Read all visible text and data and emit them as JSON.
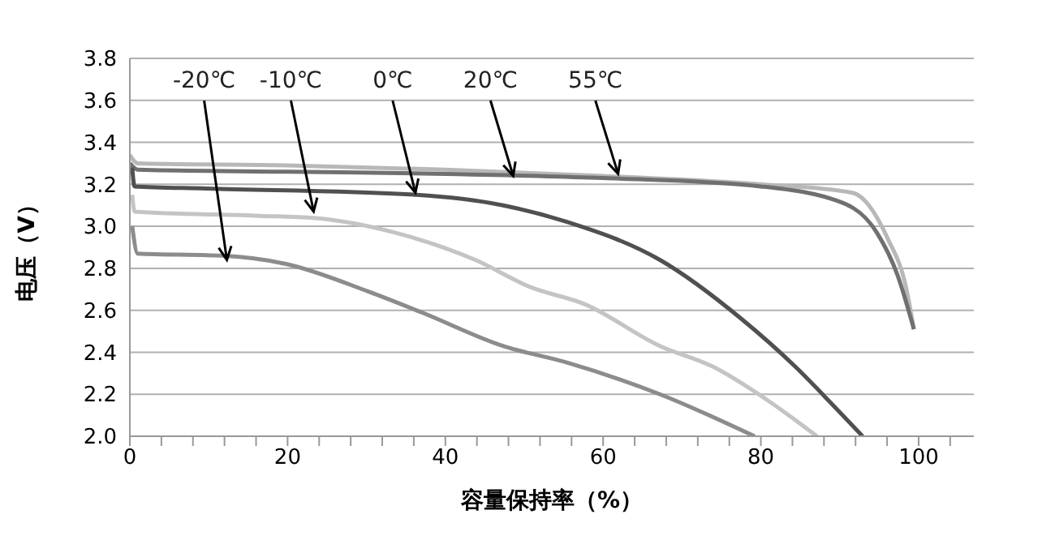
{
  "chart_data": {
    "type": "line",
    "xlabel": "容量保持率（%）",
    "ylabel": "电压（V）",
    "xlim": [
      0,
      107
    ],
    "ylim": [
      2.0,
      3.8
    ],
    "xticks": [
      {
        "value": 0,
        "label": "0"
      },
      {
        "value": 4,
        "label": null
      },
      {
        "value": 8,
        "label": null
      },
      {
        "value": 12,
        "label": null
      },
      {
        "value": 16,
        "label": null
      },
      {
        "value": 20,
        "label": "20"
      },
      {
        "value": 24,
        "label": null
      },
      {
        "value": 28,
        "label": null
      },
      {
        "value": 32,
        "label": null
      },
      {
        "value": 36,
        "label": null
      },
      {
        "value": 40,
        "label": "40"
      },
      {
        "value": 44,
        "label": null
      },
      {
        "value": 48,
        "label": null
      },
      {
        "value": 52,
        "label": null
      },
      {
        "value": 56,
        "label": null
      },
      {
        "value": 60,
        "label": "60"
      },
      {
        "value": 64,
        "label": null
      },
      {
        "value": 68,
        "label": null
      },
      {
        "value": 72,
        "label": null
      },
      {
        "value": 76,
        "label": null
      },
      {
        "value": 80,
        "label": "80"
      },
      {
        "value": 84,
        "label": null
      },
      {
        "value": 88,
        "label": null
      },
      {
        "value": 92,
        "label": null
      },
      {
        "value": 96,
        "label": null
      },
      {
        "value": 100,
        "label": "100"
      },
      {
        "value": 104,
        "label": null
      }
    ],
    "yticks": [
      {
        "value": 2.0,
        "label": "2.0"
      },
      {
        "value": 2.2,
        "label": "2.2"
      },
      {
        "value": 2.4,
        "label": "2.4"
      },
      {
        "value": 2.6,
        "label": "2.6"
      },
      {
        "value": 2.8,
        "label": "2.8"
      },
      {
        "value": 3.0,
        "label": "3.0"
      },
      {
        "value": 3.2,
        "label": "3.2"
      },
      {
        "value": 3.4,
        "label": "3.4"
      },
      {
        "value": 3.6,
        "label": "3.6"
      },
      {
        "value": 3.8,
        "label": "3.8"
      }
    ],
    "grid": "y",
    "marker": "none",
    "line_style": "solid",
    "series": [
      {
        "color": "#b8b8b8",
        "x": [
          0,
          1,
          20,
          40,
          60,
          80,
          91.6,
          96.1,
          98.4,
          99.4
        ],
        "values": [
          3.34,
          3.3,
          3.29,
          3.27,
          3.24,
          3.2,
          3.16,
          2.94,
          2.71,
          2.51
        ]
      },
      {
        "color": "#707070",
        "x": [
          0,
          1,
          20,
          40,
          60,
          80,
          90.5,
          94.7,
          97.3,
          99.4
        ],
        "values": [
          3.3,
          3.27,
          3.26,
          3.25,
          3.23,
          3.19,
          3.11,
          2.97,
          2.77,
          2.51
        ]
      },
      {
        "color": "#505050",
        "x": [
          0.3,
          0.6,
          9.6,
          36.3,
          47.3,
          55.5,
          67.2,
          77.5,
          84.4,
          89.1,
          92.9
        ],
        "values": [
          3.28,
          3.19,
          3.18,
          3.15,
          3.1,
          3.02,
          2.84,
          2.56,
          2.33,
          2.15,
          2.0
        ]
      },
      {
        "color": "#c4c4c4",
        "x": [
          0.3,
          0.6,
          16.5,
          23.3,
          33.6,
          43.8,
          50.8,
          57.6,
          67.2,
          74,
          80.9,
          87.1
        ],
        "values": [
          3.15,
          3.07,
          3.05,
          3.04,
          2.97,
          2.84,
          2.71,
          2.63,
          2.43,
          2.33,
          2.17,
          2.0
        ]
      },
      {
        "color": "#8c8c8c",
        "x": [
          0.3,
          1,
          11.7,
          19.9,
          30.2,
          37,
          47.3,
          55.5,
          67.2,
          79.2
        ],
        "values": [
          3.0,
          2.87,
          2.86,
          2.82,
          2.69,
          2.59,
          2.43,
          2.35,
          2.2,
          2.0
        ]
      }
    ],
    "annotations": [
      {
        "text": "-20℃",
        "x": 12.3,
        "y": 2.84
      },
      {
        "text": "-10℃",
        "x": 23.3,
        "y": 3.07
      },
      {
        "text": "0℃",
        "x": 36.2,
        "y": 3.16
      },
      {
        "text": "20℃",
        "x": 48.6,
        "y": 3.24
      },
      {
        "text": "55℃",
        "x": 61.9,
        "y": 3.25
      }
    ]
  }
}
